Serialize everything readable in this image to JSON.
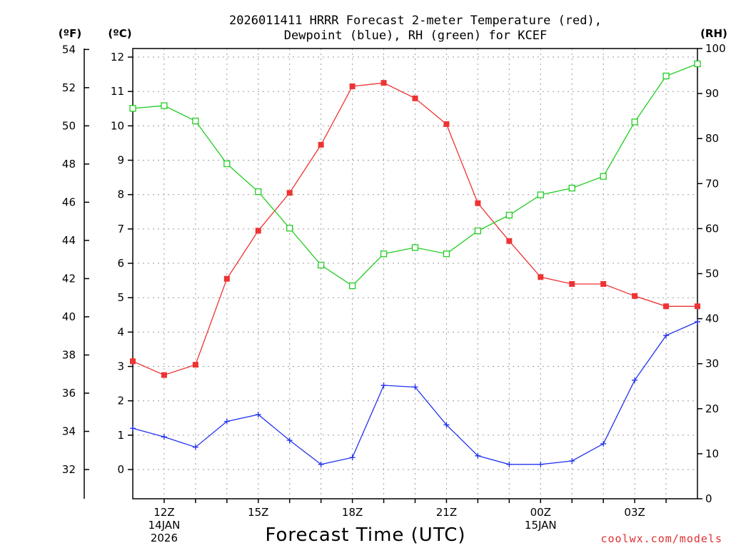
{
  "chart_data": {
    "type": "line",
    "title_line1": "2026011411 HRRR Forecast 2-meter Temperature (red),",
    "title_line2": "Dewpoint (blue), RH (green) for KCEF",
    "xlabel": "Forecast Time (UTC)",
    "credit": "coolwx.com/models",
    "units": {
      "fahrenheit": "(ºF)",
      "celsius": "(ºC)",
      "rh": "(RH)"
    },
    "x_hours": [
      11,
      12,
      13,
      14,
      15,
      16,
      17,
      18,
      19,
      20,
      21,
      22,
      23,
      24,
      25,
      26,
      27,
      28,
      29
    ],
    "x_range": [
      11,
      29
    ],
    "x_ticks": [
      {
        "hour": 12,
        "label": "12Z",
        "sub1": "14JAN",
        "sub2": "2026"
      },
      {
        "hour": 15,
        "label": "15Z",
        "sub1": "",
        "sub2": ""
      },
      {
        "hour": 18,
        "label": "18Z",
        "sub1": "",
        "sub2": ""
      },
      {
        "hour": 21,
        "label": "21Z",
        "sub1": "",
        "sub2": ""
      },
      {
        "hour": 24,
        "label": "00Z",
        "sub1": "15JAN",
        "sub2": ""
      },
      {
        "hour": 27,
        "label": "03Z",
        "sub1": "",
        "sub2": ""
      }
    ],
    "celsius_axis": {
      "range": [
        -0.85,
        12.25
      ],
      "ticks": [
        "0",
        "1",
        "2",
        "3",
        "4",
        "5",
        "6",
        "7",
        "8",
        "9",
        "10",
        "11",
        "12"
      ]
    },
    "fahrenheit_axis": {
      "ticks": [
        "32",
        "34",
        "36",
        "38",
        "40",
        "42",
        "44",
        "46",
        "48",
        "50",
        "52",
        "54"
      ]
    },
    "rh_axis": {
      "range": [
        0,
        100
      ],
      "ticks": [
        "0",
        "10",
        "20",
        "30",
        "40",
        "50",
        "60",
        "70",
        "80",
        "90",
        "100"
      ]
    },
    "series": [
      {
        "name": "Temperature",
        "unit": "C",
        "color": "#ee3333",
        "marker": "filled-square",
        "values": [
          3.15,
          2.75,
          3.05,
          5.55,
          6.95,
          8.05,
          9.45,
          11.15,
          11.25,
          10.8,
          10.05,
          7.75,
          6.65,
          5.6,
          5.4,
          5.4,
          5.05,
          4.75,
          4.75
        ]
      },
      {
        "name": "Dewpoint",
        "unit": "C",
        "color": "#2233ee",
        "marker": "plus",
        "values": [
          1.2,
          0.95,
          0.65,
          1.4,
          1.6,
          0.85,
          0.15,
          0.35,
          2.45,
          2.4,
          1.3,
          0.4,
          0.15,
          0.15,
          0.25,
          0.75,
          2.6,
          3.9,
          4.3
        ]
      },
      {
        "name": "RH",
        "unit": "%",
        "color": "#22cc22",
        "marker": "open-square",
        "values": [
          86.7,
          87.3,
          83.9,
          74.4,
          68.2,
          60.1,
          51.9,
          47.3,
          54.4,
          55.8,
          54.4,
          59.5,
          63.0,
          67.5,
          69.0,
          71.6,
          83.7,
          93.9,
          96.6
        ]
      }
    ]
  }
}
